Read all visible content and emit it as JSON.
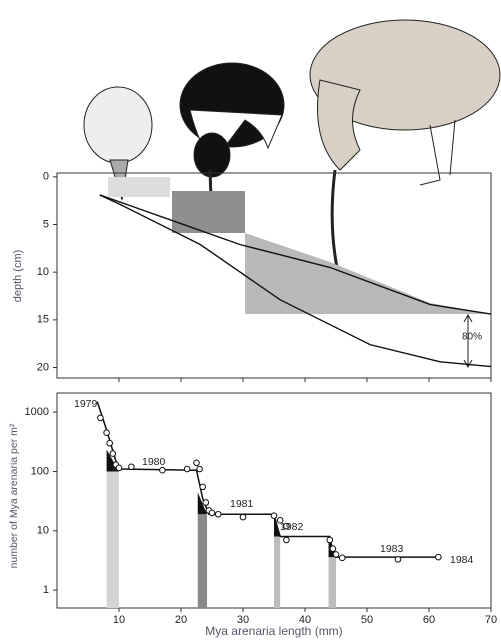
{
  "chart_data": [
    {
      "type": "profile",
      "ylabel": "depth (cm)",
      "xlim": [
        0,
        70
      ],
      "ylim": [
        -0.4,
        21.1
      ],
      "xticks": [
        10,
        20,
        30,
        40,
        50,
        60,
        70
      ],
      "yticks": [
        0,
        5,
        10,
        15,
        20
      ],
      "annotation": "80%",
      "lines": [
        {
          "x": [
            6.9,
            18.2,
            29.5,
            44,
            60.2,
            70
          ],
          "y": [
            1.9,
            4.5,
            7.1,
            9.5,
            13.4,
            14.4
          ]
        },
        {
          "x": [
            6.9,
            10.2,
            23.1,
            36,
            50.5,
            61.8,
            70
          ],
          "y": [
            1.9,
            2.9,
            7.1,
            12.9,
            17.6,
            19.4,
            19.9
          ]
        }
      ]
    },
    {
      "type": "step-scatter",
      "xlabel": "Mya arenaria length (mm)",
      "ylabel": "number of Mya arenaria per m²",
      "log_y": true,
      "xlim": [
        0,
        70
      ],
      "ylim": [
        0.5,
        2100
      ],
      "xticks": [
        10,
        20,
        30,
        40,
        50,
        60,
        70
      ],
      "yticks": [
        1,
        10,
        100,
        1000
      ],
      "years": [
        "1979",
        "1980",
        "1981",
        "1982",
        "1983",
        "1984"
      ],
      "line": {
        "x": [
          6.5,
          8,
          9.5,
          10,
          22.5,
          23.5,
          24.5,
          35,
          35.5,
          36,
          44,
          44.5,
          45,
          62
        ],
        "y": [
          1500,
          500,
          150,
          110,
          105,
          35,
          19,
          19,
          12,
          8,
          8,
          4.5,
          3.6,
          3.6
        ]
      },
      "points": {
        "x": [
          7,
          8,
          8.5,
          9,
          9.5,
          10,
          12,
          17,
          21,
          22.5,
          23,
          23.5,
          24,
          24.5,
          25,
          26,
          30,
          35,
          36,
          37,
          37,
          44,
          44.5,
          45,
          46,
          55,
          61.5
        ],
        "y": [
          800,
          450,
          300,
          200,
          130,
          115,
          120,
          105,
          110,
          140,
          110,
          55,
          30,
          22,
          20,
          19,
          17,
          18,
          15,
          12,
          7,
          7,
          5,
          4,
          3.5,
          3.3,
          3.6
        ]
      },
      "bands": [
        {
          "x": [
            8,
            10
          ],
          "top": 100,
          "color": "#d4d4d4"
        },
        {
          "x": [
            22.7,
            24.2
          ],
          "top": 19,
          "color": "#8a8a8a"
        },
        {
          "x": [
            35,
            36
          ],
          "top": 8,
          "color": "#bdbdbd"
        },
        {
          "x": [
            43.8,
            45
          ],
          "top": 3.6,
          "color": "#bdbdbd"
        }
      ]
    }
  ]
}
